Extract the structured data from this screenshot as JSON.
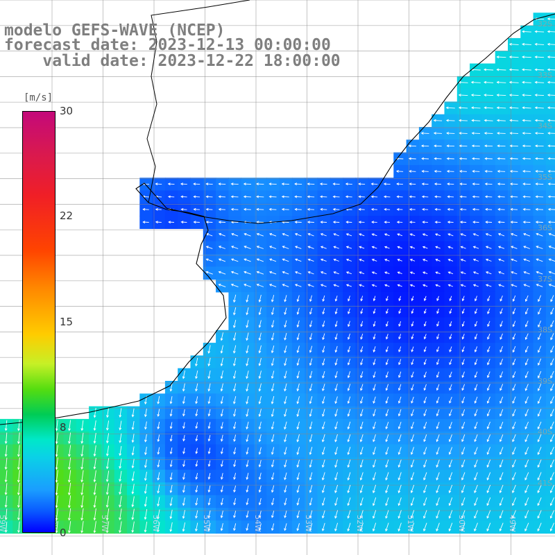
{
  "header": {
    "line1": "modelo GEFS-WAVE (NCEP)",
    "line2": "forecast date: 2023-12-13 00:00:00",
    "line3": "    valid date: 2023-12-22 18:00:00"
  },
  "colorbar": {
    "unit": "[m/s]",
    "min": 0,
    "max": 30,
    "ticks": [
      "30",
      "22",
      "15",
      "8",
      "0"
    ],
    "colors": [
      "#0000ff",
      "#0a5aff",
      "#1a9dff",
      "#0ad2e6",
      "#00e8c8",
      "#00cc55",
      "#55dd10",
      "#c6f026",
      "#ffcc00",
      "#ff8800",
      "#ff4400",
      "#f01f26",
      "#d9194f",
      "#c4097a"
    ]
  },
  "map": {
    "background": "#ffffff",
    "land_color": "#ffffff",
    "coast_color": "#000000",
    "grid_color": "#888888",
    "arrow_color": "#ffffff",
    "lat_labels": [
      "32S",
      "33S",
      "34S",
      "35S",
      "36S",
      "37S",
      "38S",
      "39S",
      "40S",
      "41S"
    ],
    "lon_labels": [
      "49W",
      "50W",
      "51W",
      "52W",
      "53W",
      "54W",
      "55W",
      "56W",
      "57W",
      "58W",
      "59W"
    ]
  }
}
